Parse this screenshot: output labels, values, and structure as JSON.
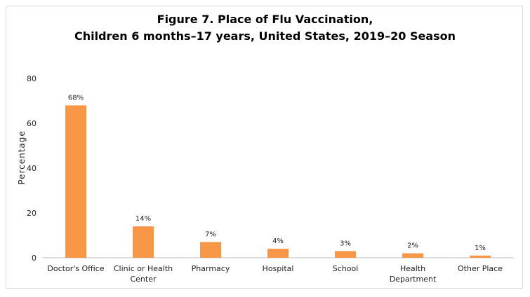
{
  "chart_data": {
    "type": "bar",
    "title_line1": "Figure 7. Place of Flu Vaccination,",
    "title_line2": "Children 6 months–17 years, United States, 2019–20 Season",
    "ylabel": "Percentage",
    "xlabel": "",
    "ylim": [
      0,
      80
    ],
    "yticks": [
      0,
      20,
      40,
      60,
      80
    ],
    "grid": false,
    "categories": [
      [
        "Doctor's Office"
      ],
      [
        "Clinic or Health",
        "Center"
      ],
      [
        "Pharmacy"
      ],
      [
        "Hospital"
      ],
      [
        "School"
      ],
      [
        "Health",
        "Department"
      ],
      [
        "Other Place"
      ]
    ],
    "values": [
      68,
      14,
      7,
      4,
      3,
      2,
      1
    ],
    "data_labels": [
      "68%",
      "14%",
      "7%",
      "4%",
      "3%",
      "2%",
      "1%"
    ],
    "bar_color": "#F79646"
  }
}
